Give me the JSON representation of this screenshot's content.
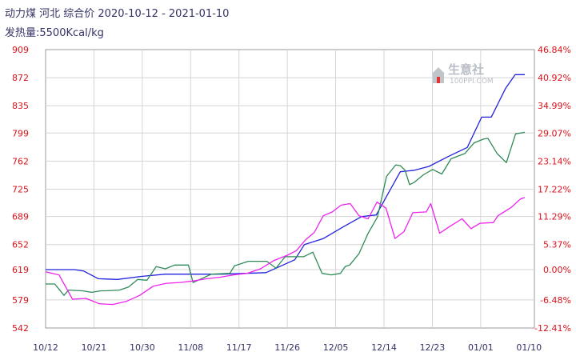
{
  "title": {
    "line1": "动力煤 河北 综合价 2020-10-12 - 2021-01-10",
    "line2": "发热量:5500Kcal/kg"
  },
  "watermark": {
    "brand": "生意社",
    "url": "100PPI.COM"
  },
  "colors": {
    "background": "#ffffff",
    "grid": "#d4d4d4",
    "tick_left": "#d9121a",
    "tick_right": "#d9121a",
    "tick_x": "#333366",
    "title": "#333366"
  },
  "chart_data": {
    "type": "line",
    "grid": true,
    "y_left": {
      "ticks": [
        542,
        579,
        619,
        652,
        689,
        725,
        762,
        799,
        835,
        872,
        909
      ],
      "ylim": [
        542,
        909
      ]
    },
    "y_right": {
      "tick_labels": [
        "-12.41%",
        "-6.48%",
        "0.00%",
        "5.37%",
        "11.29%",
        "17.22%",
        "23.14%",
        "29.07%",
        "34.99%",
        "40.92%",
        "46.84%"
      ]
    },
    "x": {
      "tick_labels": [
        "10/12",
        "10/21",
        "10/30",
        "11/08",
        "11/17",
        "11/26",
        "12/05",
        "12/14",
        "12/23",
        "01/01",
        "01/10"
      ],
      "days": 91
    },
    "series": [
      {
        "color": "#2222dd",
        "points": [
          [
            0,
            619
          ],
          [
            6,
            619
          ],
          [
            8,
            617
          ],
          [
            11,
            607
          ],
          [
            15,
            606
          ],
          [
            20,
            610
          ],
          [
            25,
            613
          ],
          [
            30,
            613
          ],
          [
            37,
            613
          ],
          [
            46,
            615
          ],
          [
            52,
            632
          ],
          [
            54,
            652
          ],
          [
            58,
            660
          ],
          [
            62,
            675
          ],
          [
            66,
            689
          ],
          [
            69,
            691
          ],
          [
            74,
            748
          ],
          [
            77,
            750
          ],
          [
            80,
            755
          ],
          [
            84,
            768
          ],
          [
            88,
            780
          ],
          [
            91,
            820
          ],
          [
            93,
            820
          ],
          [
            96,
            858
          ],
          [
            98,
            876
          ],
          [
            100,
            876
          ]
        ]
      },
      {
        "color": "#2e8b57",
        "points": [
          [
            0,
            600
          ],
          [
            2,
            600
          ],
          [
            4,
            585
          ],
          [
            5,
            592
          ],
          [
            8,
            591
          ],
          [
            10,
            589
          ],
          [
            12,
            591
          ],
          [
            13,
            591
          ],
          [
            16,
            592
          ],
          [
            18,
            596
          ],
          [
            20,
            606
          ],
          [
            22,
            605
          ],
          [
            24,
            623
          ],
          [
            26,
            620
          ],
          [
            28,
            625
          ],
          [
            30,
            625
          ],
          [
            31,
            625
          ],
          [
            32,
            602
          ],
          [
            36,
            613
          ],
          [
            40,
            614
          ],
          [
            41,
            624
          ],
          [
            44,
            630
          ],
          [
            48,
            630
          ],
          [
            50,
            621
          ],
          [
            52,
            636
          ],
          [
            56,
            636
          ],
          [
            58,
            642
          ],
          [
            60,
            614
          ],
          [
            62,
            612
          ],
          [
            63,
            613
          ],
          [
            64,
            614
          ],
          [
            65,
            623
          ],
          [
            66,
            625
          ],
          [
            68,
            640
          ],
          [
            70,
            667
          ],
          [
            72,
            688
          ],
          [
            74,
            742
          ],
          [
            76,
            757
          ],
          [
            77,
            756
          ],
          [
            78,
            750
          ],
          [
            79,
            731
          ],
          [
            80,
            734
          ],
          [
            82,
            744
          ],
          [
            84,
            751
          ],
          [
            86,
            745
          ],
          [
            88,
            765
          ],
          [
            91,
            772
          ],
          [
            93,
            786
          ],
          [
            95,
            791
          ],
          [
            96,
            792
          ],
          [
            98,
            772
          ],
          [
            100,
            760
          ],
          [
            102,
            798
          ],
          [
            104,
            800
          ]
        ]
      },
      {
        "color": "#ee22ee",
        "points": [
          [
            0,
            616
          ],
          [
            3,
            612
          ],
          [
            6,
            580
          ],
          [
            9,
            581
          ],
          [
            12,
            574
          ],
          [
            15,
            573
          ],
          [
            18,
            577
          ],
          [
            21,
            585
          ],
          [
            24,
            597
          ],
          [
            27,
            601
          ],
          [
            30,
            602
          ],
          [
            33,
            604
          ],
          [
            36,
            607
          ],
          [
            39,
            609
          ],
          [
            42,
            612
          ],
          [
            45,
            614
          ],
          [
            48,
            620
          ],
          [
            51,
            631
          ],
          [
            54,
            638
          ],
          [
            56,
            644
          ],
          [
            58,
            658
          ],
          [
            60,
            668
          ],
          [
            62,
            690
          ],
          [
            64,
            695
          ],
          [
            66,
            704
          ],
          [
            68,
            706
          ],
          [
            70,
            690
          ],
          [
            72,
            686
          ],
          [
            74,
            708
          ],
          [
            76,
            700
          ],
          [
            78,
            660
          ],
          [
            80,
            669
          ],
          [
            82,
            694
          ],
          [
            85,
            695
          ],
          [
            86,
            706
          ],
          [
            88,
            667
          ],
          [
            90,
            675
          ],
          [
            93,
            686
          ],
          [
            95,
            673
          ],
          [
            97,
            680
          ],
          [
            100,
            681
          ],
          [
            101,
            690
          ],
          [
            104,
            701
          ],
          [
            106,
            712
          ],
          [
            107,
            714
          ]
        ]
      }
    ]
  }
}
